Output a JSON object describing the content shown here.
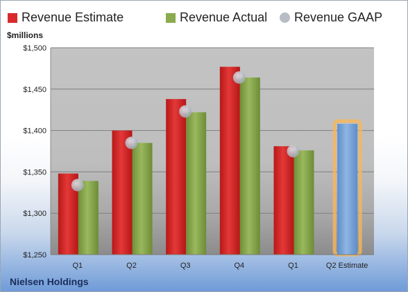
{
  "colors": {
    "estimate": "#d92b2b",
    "actual": "#8aab4e",
    "gaap": "#b8bcc6",
    "future": "#7ea7d8",
    "future_glow": "#f7b656",
    "plot_bg": "#bfbfbf",
    "grid": "#7f7f7f"
  },
  "legend": {
    "estimate": "Revenue Estimate",
    "actual": "Revenue Actual",
    "gaap": "Revenue GAAP"
  },
  "unit_label": "$millions",
  "company": "Nielsen Holdings",
  "chart_data": {
    "type": "bar",
    "title": "",
    "categories": [
      "Q1",
      "Q2",
      "Q3",
      "Q4",
      "Q1",
      "Q2 Estimate"
    ],
    "ylim": [
      1250,
      1500
    ],
    "yticks": [
      1250,
      1300,
      1350,
      1400,
      1450,
      1500
    ],
    "ytick_labels": [
      "$1,250",
      "$1,300",
      "$1,350",
      "$1,400",
      "$1,450",
      "$1,500"
    ],
    "grid": true,
    "legend_position": "top",
    "series": [
      {
        "name": "Revenue Estimate",
        "values": [
          1348,
          1400,
          1438,
          1477,
          1381,
          null
        ]
      },
      {
        "name": "Revenue Actual",
        "values": [
          1339,
          1385,
          1422,
          1464,
          1376,
          1408
        ]
      },
      {
        "name": "Revenue GAAP",
        "type": "scatter",
        "values": [
          1334,
          1385,
          1423,
          1464,
          1375,
          null
        ]
      }
    ]
  }
}
